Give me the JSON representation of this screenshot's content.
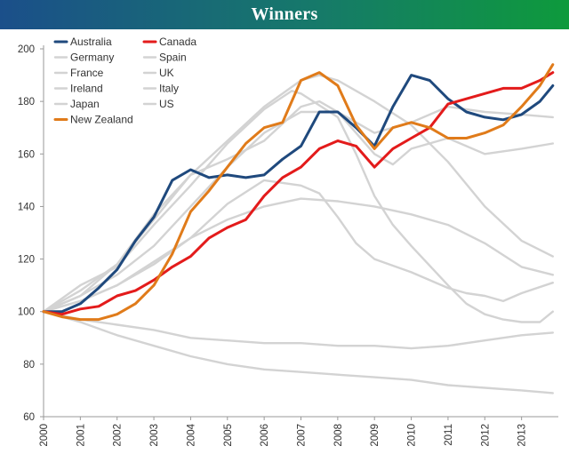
{
  "chart_data": {
    "type": "line",
    "title": "Winners",
    "xlabel": "",
    "ylabel": "",
    "xlim": [
      2000,
      2014
    ],
    "ylim": [
      60,
      200
    ],
    "yticks": [
      60,
      80,
      100,
      120,
      140,
      160,
      180,
      200
    ],
    "xtick_labels": [
      "2000",
      "2001",
      "2002",
      "2003",
      "2004",
      "2005",
      "2006",
      "2007",
      "2008",
      "2009",
      "2010",
      "2011",
      "2012",
      "2013"
    ],
    "gridlines": false,
    "legend_position": "top-left",
    "series": [
      {
        "name": "Australia",
        "color": "#1f497d",
        "highlight": true,
        "x": [
          2000,
          2000.5,
          2001,
          2001.5,
          2002,
          2002.5,
          2003,
          2003.5,
          2004,
          2004.5,
          2005,
          2005.5,
          2006,
          2006.5,
          2007,
          2007.5,
          2008,
          2008.5,
          2009,
          2009.5,
          2010,
          2010.5,
          2011,
          2011.5,
          2012,
          2012.5,
          2013,
          2013.5,
          2013.85
        ],
        "y": [
          100,
          100,
          103,
          109,
          116,
          127,
          136,
          150,
          154,
          151,
          152,
          151,
          152,
          158,
          163,
          176,
          176,
          170,
          163,
          178,
          190,
          188,
          181,
          176,
          174,
          173,
          175,
          180,
          186
        ]
      },
      {
        "name": "Canada",
        "color": "#e31b1b",
        "highlight": true,
        "x": [
          2000,
          2000.5,
          2001,
          2001.5,
          2002,
          2002.5,
          2003,
          2003.5,
          2004,
          2004.5,
          2005,
          2005.5,
          2006,
          2006.5,
          2007,
          2007.5,
          2008,
          2008.5,
          2009,
          2009.5,
          2010,
          2010.5,
          2011,
          2011.5,
          2012,
          2012.5,
          2013,
          2013.5,
          2013.85
        ],
        "y": [
          100,
          99,
          101,
          102,
          106,
          108,
          112,
          117,
          121,
          128,
          132,
          135,
          144,
          151,
          155,
          162,
          165,
          163,
          155,
          162,
          166,
          170,
          179,
          181,
          183,
          185,
          185,
          188,
          191
        ]
      },
      {
        "name": "Germany",
        "color": "#d3d3d3",
        "highlight": false,
        "x": [
          2000,
          2001,
          2002,
          2003,
          2004,
          2005,
          2006,
          2007,
          2008,
          2009,
          2010,
          2011,
          2012,
          2013,
          2013.85
        ],
        "y": [
          100,
          97,
          95,
          93,
          90,
          89,
          88,
          88,
          87,
          87,
          86,
          87,
          89,
          91,
          92
        ]
      },
      {
        "name": "Spain",
        "color": "#d3d3d3",
        "highlight": false,
        "x": [
          2000,
          2001,
          2002,
          2003,
          2004,
          2005,
          2006,
          2007,
          2007.5,
          2008,
          2009,
          2010,
          2011,
          2012,
          2013,
          2013.85
        ],
        "y": [
          100,
          108,
          118,
          135,
          152,
          165,
          178,
          188,
          190,
          188,
          180,
          171,
          157,
          140,
          127,
          121
        ]
      },
      {
        "name": "France",
        "color": "#d3d3d3",
        "highlight": false,
        "x": [
          2000,
          2001,
          2002,
          2003,
          2004,
          2005,
          2006,
          2007,
          2008,
          2009,
          2010,
          2011,
          2012,
          2013,
          2013.85
        ],
        "y": [
          100,
          106,
          114,
          125,
          140,
          155,
          168,
          176,
          176,
          168,
          172,
          178,
          176,
          175,
          174
        ]
      },
      {
        "name": "UK",
        "color": "#d3d3d3",
        "highlight": false,
        "x": [
          2000,
          2001,
          2002,
          2003,
          2004,
          2005,
          2006,
          2007,
          2007.5,
          2008,
          2009,
          2009.5,
          2010,
          2011,
          2012,
          2013,
          2013.85
        ],
        "y": [
          100,
          106,
          118,
          137,
          152,
          158,
          165,
          178,
          180,
          176,
          160,
          156,
          162,
          166,
          160,
          162,
          164
        ]
      },
      {
        "name": "Ireland",
        "color": "#d3d3d3",
        "highlight": false,
        "x": [
          2000,
          2001,
          2002,
          2003,
          2004,
          2005,
          2006,
          2006.75,
          2007,
          2008,
          2008.5,
          2009,
          2009.5,
          2010,
          2011,
          2011.5,
          2012,
          2012.5,
          2013,
          2013.5,
          2013.85
        ],
        "y": [
          100,
          110,
          117,
          133,
          148,
          164,
          177,
          184,
          183,
          174,
          160,
          144,
          133,
          125,
          110,
          103,
          99,
          97,
          96,
          96,
          100
        ]
      },
      {
        "name": "Italy",
        "color": "#d3d3d3",
        "highlight": false,
        "x": [
          2000,
          2001,
          2002,
          2003,
          2004,
          2005,
          2006,
          2007,
          2008,
          2009,
          2010,
          2011,
          2012,
          2013,
          2013.85
        ],
        "y": [
          100,
          104,
          110,
          119,
          128,
          135,
          140,
          143,
          142,
          140,
          137,
          133,
          126,
          117,
          114
        ]
      },
      {
        "name": "Japan",
        "color": "#d3d3d3",
        "highlight": false,
        "x": [
          2000,
          2001,
          2002,
          2003,
          2004,
          2005,
          2006,
          2007,
          2008,
          2009,
          2010,
          2011,
          2012,
          2013,
          2013.85
        ],
        "y": [
          100,
          96,
          91,
          87,
          83,
          80,
          78,
          77,
          76,
          75,
          74,
          72,
          71,
          70,
          69
        ]
      },
      {
        "name": "US",
        "color": "#d3d3d3",
        "highlight": false,
        "x": [
          2000,
          2001,
          2002,
          2003,
          2004,
          2005,
          2006,
          2007,
          2007.5,
          2008,
          2008.5,
          2009,
          2010,
          2011,
          2011.5,
          2012,
          2012.5,
          2013,
          2013.85
        ],
        "y": [
          100,
          104,
          110,
          118,
          128,
          141,
          150,
          148,
          145,
          136,
          126,
          120,
          115,
          109,
          107,
          106,
          104,
          107,
          111
        ]
      },
      {
        "name": "New Zealand",
        "color": "#e07b1a",
        "highlight": true,
        "x": [
          2000,
          2000.5,
          2001,
          2001.5,
          2002,
          2002.5,
          2003,
          2003.5,
          2004,
          2004.5,
          2005,
          2005.5,
          2006,
          2006.5,
          2007,
          2007.5,
          2008,
          2008.5,
          2009,
          2009.5,
          2010,
          2010.5,
          2011,
          2011.5,
          2012,
          2012.5,
          2013,
          2013.5,
          2013.85
        ],
        "y": [
          100,
          98,
          97,
          97,
          99,
          103,
          110,
          122,
          138,
          146,
          155,
          164,
          170,
          172,
          188,
          191,
          186,
          171,
          162,
          170,
          172,
          170,
          166,
          166,
          168,
          171,
          178,
          186,
          194
        ]
      }
    ]
  }
}
